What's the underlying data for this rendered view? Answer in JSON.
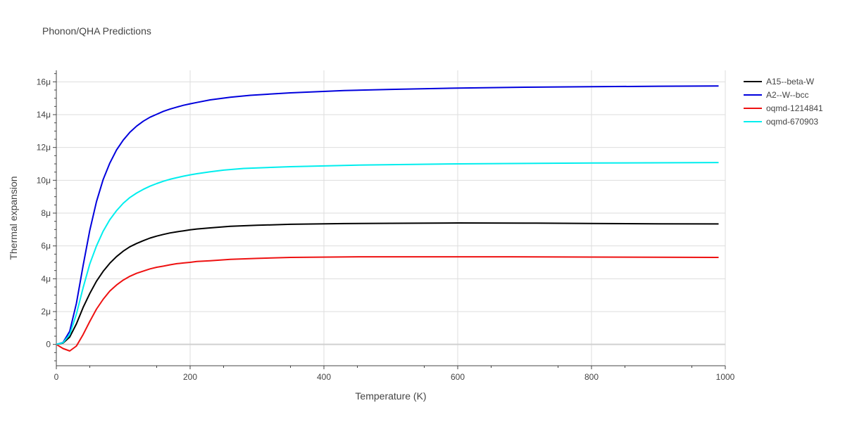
{
  "title": "Phonon/QHA Predictions",
  "chart_data": {
    "type": "line",
    "xlabel": "Temperature (K)",
    "ylabel": "Thermal expansion",
    "xlim": [
      0,
      1000
    ],
    "ylim": [
      -1.3,
      16.7
    ],
    "x_ticks": [
      0,
      200,
      400,
      600,
      800,
      1000
    ],
    "x_tick_labels": [
      "0",
      "200",
      "400",
      "600",
      "800",
      "1000"
    ],
    "y_ticks": [
      0,
      2,
      4,
      6,
      8,
      10,
      12,
      14,
      16
    ],
    "y_tick_labels": [
      "0",
      "2μ",
      "4μ",
      "6μ",
      "8μ",
      "10μ",
      "12μ",
      "14μ",
      "16μ"
    ],
    "grid": true,
    "legend_position": "right",
    "series": [
      {
        "name": "A15--beta-W",
        "color": "#000000",
        "x": [
          0,
          10,
          20,
          30,
          40,
          50,
          60,
          70,
          80,
          90,
          100,
          110,
          120,
          130,
          140,
          150,
          160,
          170,
          180,
          190,
          200,
          210,
          230,
          260,
          300,
          350,
          430,
          500,
          600,
          700,
          800,
          900,
          990
        ],
        "y": [
          0,
          0.08,
          0.45,
          1.25,
          2.25,
          3.1,
          3.85,
          4.45,
          4.95,
          5.35,
          5.68,
          5.95,
          6.15,
          6.32,
          6.48,
          6.6,
          6.7,
          6.79,
          6.86,
          6.92,
          6.98,
          7.03,
          7.1,
          7.2,
          7.26,
          7.32,
          7.36,
          7.38,
          7.4,
          7.39,
          7.37,
          7.35,
          7.34
        ]
      },
      {
        "name": "A2--W--bcc",
        "color": "#0000dd",
        "x": [
          0,
          10,
          20,
          30,
          40,
          50,
          60,
          70,
          80,
          90,
          100,
          110,
          120,
          130,
          140,
          150,
          160,
          170,
          180,
          190,
          200,
          210,
          230,
          260,
          290,
          350,
          430,
          500,
          600,
          700,
          800,
          900,
          990
        ],
        "y": [
          0,
          0.12,
          0.8,
          2.5,
          4.8,
          6.95,
          8.7,
          10.05,
          11.05,
          11.85,
          12.45,
          12.93,
          13.3,
          13.6,
          13.84,
          14.02,
          14.2,
          14.34,
          14.46,
          14.57,
          14.66,
          14.74,
          14.9,
          15.06,
          15.18,
          15.33,
          15.47,
          15.54,
          15.62,
          15.67,
          15.7,
          15.73,
          15.75
        ]
      },
      {
        "name": "oqmd-1214841",
        "color": "#ee1111",
        "x": [
          0,
          10,
          20,
          30,
          40,
          50,
          60,
          70,
          80,
          90,
          100,
          110,
          120,
          130,
          140,
          150,
          160,
          170,
          180,
          190,
          200,
          210,
          230,
          260,
          300,
          350,
          460,
          550,
          680,
          800,
          900,
          990
        ],
        "y": [
          0,
          -0.25,
          -0.4,
          -0.1,
          0.6,
          1.4,
          2.15,
          2.75,
          3.25,
          3.62,
          3.92,
          4.15,
          4.33,
          4.47,
          4.6,
          4.7,
          4.77,
          4.85,
          4.92,
          4.96,
          5.0,
          5.05,
          5.1,
          5.18,
          5.24,
          5.3,
          5.34,
          5.34,
          5.34,
          5.32,
          5.31,
          5.3
        ]
      },
      {
        "name": "oqmd-670903",
        "color": "#00eeee",
        "x": [
          0,
          10,
          20,
          30,
          40,
          50,
          60,
          70,
          80,
          90,
          100,
          110,
          120,
          130,
          140,
          150,
          160,
          170,
          180,
          190,
          200,
          210,
          230,
          250,
          280,
          350,
          460,
          600,
          800,
          990
        ],
        "y": [
          0,
          0.1,
          0.6,
          1.85,
          3.45,
          4.9,
          6.0,
          6.9,
          7.6,
          8.15,
          8.6,
          8.95,
          9.22,
          9.45,
          9.64,
          9.8,
          9.94,
          10.06,
          10.16,
          10.25,
          10.33,
          10.4,
          10.52,
          10.62,
          10.72,
          10.83,
          10.93,
          11.0,
          11.05,
          11.08
        ]
      }
    ]
  }
}
